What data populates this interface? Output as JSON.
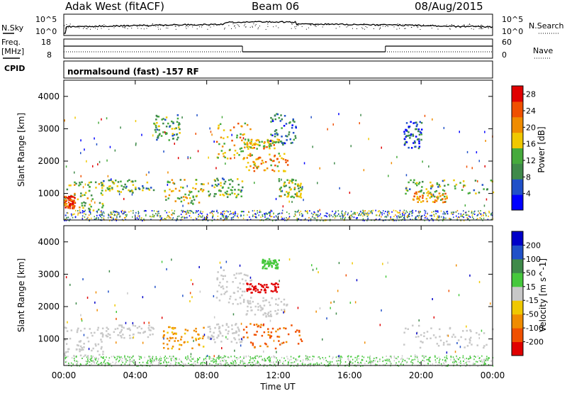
{
  "header": {
    "station": "Adak West (fitACF)",
    "beam": "Beam 06",
    "date": "08/Aug/2015"
  },
  "noise_panel": {
    "left_label": "N.Sky",
    "right_label": "N.Search",
    "left_ticks": [
      "10^5",
      "10^0"
    ],
    "right_ticks": [
      "10^5",
      "10^0"
    ]
  },
  "freq_panel": {
    "left_label_1": "Freq.",
    "left_label_2": "[MHz]",
    "left_ticks": [
      "18",
      "8"
    ],
    "right_ticks": [
      "60",
      "0"
    ],
    "right_label": "Nave",
    "cpid_label": "CPID",
    "cpid_text": "normalsound (fast) -157 RF"
  },
  "colors": {
    "power_scale": [
      "#0000ff",
      "#2050c8",
      "#3f8a4a",
      "#46aa3c",
      "#f0c800",
      "#f08c00",
      "#f05000",
      "#e00000"
    ],
    "velocity_scale": [
      "#e00000",
      "#f05000",
      "#f08c00",
      "#f0c800",
      "#c8c8c8",
      "#46c83c",
      "#3f8a4a",
      "#2050c8",
      "#0000c8"
    ]
  },
  "chart_data": [
    {
      "type": "heatmap",
      "title": "Power",
      "ylabel": "Slant Range [km]",
      "xlabel": "",
      "ylim": [
        180,
        4500
      ],
      "xlim": [
        0,
        24
      ],
      "x_ticks": [
        0,
        4,
        8,
        12,
        16,
        20,
        24
      ],
      "y_ticks": [
        "1000",
        "2000",
        "3000",
        "4000"
      ],
      "colorbar_label": "Power [dB]",
      "colorbar_ticks": [
        "4",
        "8",
        "12",
        "16",
        "20",
        "24",
        "28"
      ],
      "colorbar_range": [
        0,
        30
      ],
      "regions": [
        {
          "t0": 0.0,
          "t1": 2.2,
          "r0": 500,
          "r1": 1400,
          "value": 14
        },
        {
          "t0": 0.0,
          "t1": 0.6,
          "r0": 550,
          "r1": 950,
          "value": 26
        },
        {
          "t0": 2.0,
          "t1": 5.0,
          "r0": 1050,
          "r1": 1450,
          "value": 12
        },
        {
          "t0": 5.0,
          "t1": 6.5,
          "r0": 2650,
          "r1": 3450,
          "value": 10
        },
        {
          "t0": 5.5,
          "t1": 7.8,
          "r0": 700,
          "r1": 1450,
          "value": 16
        },
        {
          "t0": 8.0,
          "t1": 10.0,
          "r0": 900,
          "r1": 1500,
          "value": 12
        },
        {
          "t0": 8.5,
          "t1": 10.5,
          "r0": 2100,
          "r1": 3200,
          "value": 18
        },
        {
          "t0": 10.0,
          "t1": 12.5,
          "r0": 1700,
          "r1": 2300,
          "value": 20
        },
        {
          "t0": 10.2,
          "t1": 12.0,
          "r0": 2400,
          "r1": 2700,
          "value": 18
        },
        {
          "t0": 11.5,
          "t1": 13.0,
          "r0": 2500,
          "r1": 3500,
          "value": 8
        },
        {
          "t0": 12.0,
          "t1": 13.3,
          "r0": 900,
          "r1": 1500,
          "value": 14
        },
        {
          "t0": 19.0,
          "t1": 24.0,
          "r0": 1000,
          "r1": 1450,
          "value": 12
        },
        {
          "t0": 19.5,
          "t1": 21.5,
          "r0": 750,
          "r1": 1100,
          "value": 18
        },
        {
          "t0": 19.0,
          "t1": 20.0,
          "r0": 2400,
          "r1": 3300,
          "value": 6
        }
      ],
      "ground_band": {
        "r0": 180,
        "r1": 500,
        "value": 10
      }
    },
    {
      "type": "heatmap",
      "title": "Velocity",
      "ylabel": "Slant Range [km]",
      "xlabel": "Time UT",
      "ylim": [
        180,
        4500
      ],
      "xlim": [
        0,
        24
      ],
      "x_ticks": [
        0,
        4,
        8,
        12,
        16,
        20,
        24
      ],
      "x_tick_labels": [
        "00:00",
        "04:00",
        "08:00",
        "12:00",
        "16:00",
        "20:00",
        "00:00"
      ],
      "y_ticks": [
        "1000",
        "2000",
        "3000",
        "4000"
      ],
      "colorbar_label": "Velocity [m s^-1]",
      "colorbar_ticks": [
        "200",
        "100",
        "50",
        "15",
        "-15",
        "-50",
        "-100",
        "-200"
      ],
      "colorbar_range": [
        -200,
        200
      ],
      "regions": [
        {
          "t0": 0.0,
          "t1": 2.2,
          "r0": 500,
          "r1": 1400,
          "value": 0
        },
        {
          "t0": 2.0,
          "t1": 5.0,
          "r0": 1050,
          "r1": 1450,
          "value": 0
        },
        {
          "t0": 5.5,
          "t1": 7.8,
          "r0": 700,
          "r1": 1450,
          "value": -80
        },
        {
          "t0": 8.0,
          "t1": 10.0,
          "r0": 900,
          "r1": 1500,
          "value": 0
        },
        {
          "t0": 8.5,
          "t1": 10.5,
          "r0": 2100,
          "r1": 3200,
          "value": 0
        },
        {
          "t0": 10.0,
          "t1": 12.5,
          "r0": 1700,
          "r1": 2300,
          "value": 0
        },
        {
          "t0": 10.2,
          "t1": 12.0,
          "r0": 2450,
          "r1": 2750,
          "value": -200
        },
        {
          "t0": 11.0,
          "t1": 12.0,
          "r0": 3200,
          "r1": 3500,
          "value": 40
        },
        {
          "t0": 10.0,
          "t1": 13.3,
          "r0": 700,
          "r1": 1500,
          "value": -120
        },
        {
          "t0": 19.0,
          "t1": 24.0,
          "r0": 750,
          "r1": 1450,
          "value": 0
        }
      ],
      "ground_band": {
        "r0": 180,
        "r1": 500,
        "value": 30
      }
    }
  ]
}
